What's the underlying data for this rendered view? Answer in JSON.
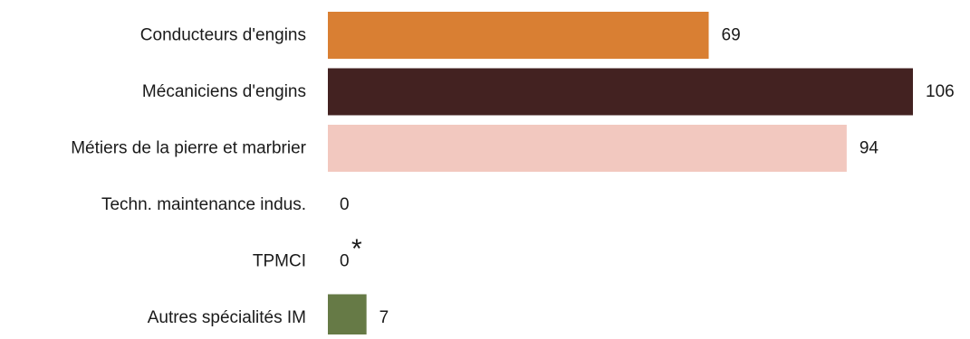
{
  "chart_data": {
    "type": "bar",
    "orientation": "horizontal",
    "categories": [
      "Conducteurs d'engins",
      "Mécaniciens d'engins",
      "Métiers de la pierre et marbrier",
      "Techn. maintenance indus.",
      "TPMCI",
      "Autres spécialités IM"
    ],
    "values": [
      69,
      106,
      94,
      0,
      0,
      7
    ],
    "data_labels": [
      "69",
      "106",
      "94",
      "0",
      "0",
      "7"
    ],
    "annotations": [
      {
        "category": "TPMCI",
        "text": "*"
      }
    ],
    "colors": [
      "#d97f33",
      "#432221",
      "#f2c8bf",
      "#d97f33",
      "#d97f33",
      "#667a46"
    ],
    "title": "",
    "xlabel": "",
    "ylabel": "",
    "xlim": [
      0,
      106
    ],
    "grid": false,
    "legend": "none"
  }
}
